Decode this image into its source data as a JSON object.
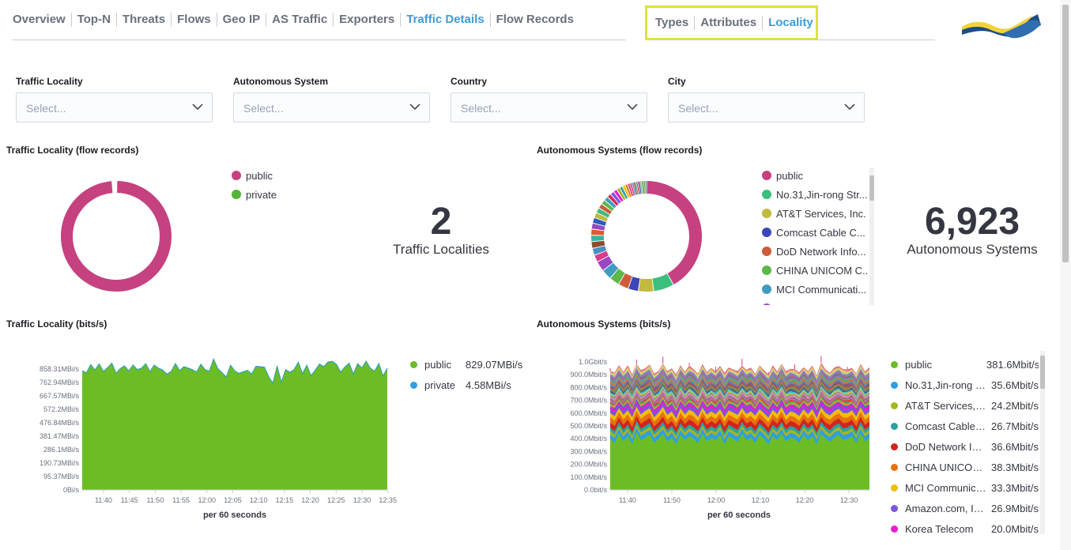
{
  "nav": {
    "tabs": [
      "Overview",
      "Top-N",
      "Threats",
      "Flows",
      "Geo IP",
      "AS Traffic",
      "Exporters",
      "Traffic Details",
      "Flow Records"
    ],
    "active": "Traffic Details",
    "subtabs": [
      "Types",
      "Attributes",
      "Locality"
    ],
    "sub_active": "Locality"
  },
  "filters": [
    {
      "label": "Traffic Locality",
      "placeholder": "Select..."
    },
    {
      "label": "Autonomous System",
      "placeholder": "Select..."
    },
    {
      "label": "Country",
      "placeholder": "Select..."
    },
    {
      "label": "City",
      "placeholder": "Select..."
    }
  ],
  "panels": {
    "locality_flows_title": "Traffic Locality (flow records)",
    "as_flows_title": "Autonomous Systems (flow records)",
    "locality_bits_title": "Traffic Locality (bits/s)",
    "as_bits_title": "Autonomous Systems (bits/s)"
  },
  "locality_legend": [
    {
      "name": "public",
      "color": "#c6417f"
    },
    {
      "name": "private",
      "color": "#54b339"
    }
  ],
  "as_legend": [
    {
      "name": "public",
      "color": "#c6417f"
    },
    {
      "name": "No.31,Jin-rong Str...",
      "color": "#3cbf7d"
    },
    {
      "name": "AT&T Services, Inc.",
      "color": "#c2b93e"
    },
    {
      "name": "Comcast Cable C...",
      "color": "#3b47b9"
    },
    {
      "name": "DoD Network Info...",
      "color": "#cc5c3a"
    },
    {
      "name": "CHINA UNICOM C...",
      "color": "#5cb84a"
    },
    {
      "name": "MCI Communicati...",
      "color": "#3f9bbf"
    },
    {
      "name": "Amazon.com, Inc.",
      "color": "#9b46c4"
    }
  ],
  "metrics": {
    "localities_value": "2",
    "localities_label": "Traffic Localities",
    "as_value": "6,923",
    "as_label": "Autonomous Systems"
  },
  "locality_bits_legend": [
    {
      "name": "public",
      "value": "829.07MBi/s",
      "color": "#6cbd25"
    },
    {
      "name": "private",
      "value": "4.58MBi/s",
      "color": "#2f9fe0"
    }
  ],
  "as_bits_legend": [
    {
      "name": "public",
      "value": "381.6Mbit/s",
      "color": "#6cbd25"
    },
    {
      "name": "No.31,Jin-rong S...",
      "value": "35.6Mbit/s",
      "color": "#2f9fe0"
    },
    {
      "name": "AT&T Services, I...",
      "value": "24.2Mbit/s",
      "color": "#a6b51e"
    },
    {
      "name": "Comcast Cable ...",
      "value": "26.7Mbit/s",
      "color": "#2aa2a1"
    },
    {
      "name": "DoD Network Inf...",
      "value": "36.6Mbit/s",
      "color": "#d2231f"
    },
    {
      "name": "CHINA UNICOM ...",
      "value": "38.3Mbit/s",
      "color": "#e8700f"
    },
    {
      "name": "MCI Communica...",
      "value": "33.3Mbit/s",
      "color": "#f2bc0c"
    },
    {
      "name": "Amazon.com, Inc.",
      "value": "26.9Mbit/s",
      "color": "#7b55e0"
    },
    {
      "name": "Korea Telecom",
      "value": "20.0Mbit/s",
      "color": "#ea1ccb"
    }
  ],
  "chart_data": [
    {
      "type": "pie",
      "title": "Traffic Locality (flow records)",
      "categories": [
        "public",
        "private"
      ],
      "values": [
        99.3,
        0.7
      ]
    },
    {
      "type": "pie",
      "title": "Autonomous Systems (flow records)",
      "categories": [
        "public",
        "No.31,Jin-rong Str...",
        "AT&T Services, Inc.",
        "Comcast Cable C...",
        "DoD Network Info...",
        "CHINA UNICOM C...",
        "MCI Communicati...",
        "Amazon.com, Inc."
      ],
      "values": [
        28,
        4,
        3,
        2,
        2,
        2,
        2,
        2
      ]
    },
    {
      "type": "area",
      "title": "Traffic Locality (bits/s)",
      "xlabel": "per 60 seconds",
      "ylabel": "",
      "x_ticks": [
        "11:40",
        "11:45",
        "11:50",
        "11:55",
        "12:00",
        "12:05",
        "12:10",
        "12:15",
        "12:20",
        "12:25",
        "12:30",
        "12:35"
      ],
      "y_ticks": [
        "0Bi/s",
        "95.37MBi/s",
        "190.73MBi/s",
        "286.1MBi/s",
        "381.47MBi/s",
        "476.84MBi/s",
        "572.2MBi/s",
        "667.57MBi/s",
        "762.94MBi/s",
        "858.31MBi/s"
      ],
      "ylim": [
        0,
        900
      ],
      "series": [
        {
          "name": "public",
          "values": [
            795,
            780,
            835,
            800,
            840,
            790,
            815,
            845,
            778,
            810,
            826,
            793,
            833,
            802,
            812,
            842,
            788,
            833,
            812,
            798,
            772,
            790,
            842,
            796,
            822,
            812,
            802,
            786,
            838,
            802,
            791,
            872,
            810,
            782,
            752,
            832,
            794,
            776,
            788,
            798,
            772,
            825,
            822,
            818,
            755,
            712,
            825,
            718,
            802,
            784,
            802,
            852,
            774,
            832,
            762,
            798,
            840,
            822,
            852,
            858,
            838,
            785,
            820,
            845,
            772,
            842,
            813,
            858,
            812,
            792,
            842,
            760,
            812
          ],
          "color": "#6cbd25"
        },
        {
          "name": "private",
          "values": [
            4,
            4,
            5,
            4,
            5,
            4,
            4,
            5,
            4,
            4,
            5,
            4,
            4,
            5,
            4,
            4,
            5,
            4,
            4,
            5,
            4,
            4,
            5,
            4,
            4,
            5,
            4,
            4,
            5,
            4,
            4,
            5,
            4,
            4,
            5,
            4,
            4,
            5,
            4,
            4,
            5,
            4,
            4,
            5,
            4,
            4,
            5,
            4,
            4,
            5,
            4,
            4,
            5,
            4,
            4,
            5,
            4,
            4,
            5,
            4,
            4,
            5,
            4,
            4,
            5,
            4,
            4,
            5,
            4,
            4,
            5,
            4,
            4
          ],
          "color": "#2f9fe0"
        }
      ]
    },
    {
      "type": "area",
      "title": "Autonomous Systems (bits/s)",
      "xlabel": "per 60 seconds",
      "ylabel": "",
      "x_ticks": [
        "11:40",
        "11:50",
        "12:00",
        "12:10",
        "12:20",
        "12:30"
      ],
      "y_ticks": [
        "0.0bit/s",
        "100.0Mbit/s",
        "200.0Mbit/s",
        "300.0Mbit/s",
        "400.0Mbit/s",
        "500.0Mbit/s",
        "600.0Mbit/s",
        "700.0Mbit/s",
        "800.0Mbit/s",
        "900.0Mbit/s",
        "1.0Gbit/s"
      ],
      "ylim": [
        0,
        1000
      ],
      "series": [
        {
          "name": "public",
          "values": [
            380,
            350,
            420,
            360,
            400,
            340,
            430,
            370,
            390,
            410,
            350,
            380,
            420,
            360,
            390,
            340,
            410,
            370,
            400,
            380,
            350,
            420,
            360,
            390,
            370,
            410,
            340,
            400,
            380,
            360,
            420,
            370,
            390,
            350,
            410,
            380,
            340,
            400,
            370,
            420,
            360,
            390,
            380,
            350,
            410,
            370,
            400,
            340,
            420,
            380,
            360,
            390,
            410,
            370,
            380,
            400,
            350,
            420,
            360,
            390
          ],
          "color": "#6cbd25"
        },
        {
          "name": "No.31,Jin-rong S...",
          "values": [
            35,
            36,
            34,
            37,
            35,
            36,
            35,
            34,
            36,
            37,
            35,
            36,
            34,
            35,
            37,
            36,
            35,
            34,
            36,
            35,
            37,
            35,
            36,
            34,
            35,
            36,
            37,
            35,
            34,
            36,
            35,
            36,
            35,
            37,
            34,
            36,
            35,
            36,
            35,
            34,
            37,
            35,
            36,
            35,
            34,
            36,
            37,
            35,
            36,
            35,
            34,
            36,
            35,
            37,
            35,
            36,
            34,
            35,
            36,
            35
          ],
          "color": "#2f9fe0"
        },
        {
          "name": "AT&T Services, I...",
          "values": [
            24,
            25,
            23,
            24,
            26,
            24,
            23,
            25,
            24,
            24,
            25,
            23,
            24,
            26,
            24,
            23,
            25,
            24,
            24,
            25,
            23,
            24,
            26,
            24,
            23,
            25,
            24,
            24,
            25,
            23,
            24,
            26,
            24,
            23,
            25,
            24,
            24,
            25,
            23,
            24,
            26,
            24,
            23,
            25,
            24,
            24,
            25,
            23,
            24,
            26,
            24,
            23,
            25,
            24,
            24,
            25,
            23,
            24,
            26,
            24
          ],
          "color": "#a6b51e"
        },
        {
          "name": "Comcast Cable ...",
          "values": [
            27,
            26,
            28,
            27,
            26,
            27,
            28,
            26,
            27,
            27,
            26,
            28,
            27,
            26,
            27,
            28,
            26,
            27,
            27,
            26,
            28,
            27,
            26,
            27,
            28,
            26,
            27,
            27,
            26,
            28,
            27,
            26,
            27,
            28,
            26,
            27,
            27,
            26,
            28,
            27,
            26,
            27,
            28,
            26,
            27,
            27,
            26,
            28,
            27,
            26,
            27,
            28,
            26,
            27,
            27,
            26,
            28,
            27,
            26,
            27
          ],
          "color": "#2aa2a1"
        },
        {
          "name": "DoD Network Inf...",
          "values": [
            36,
            38,
            35,
            37,
            36,
            39,
            35,
            36,
            38,
            37,
            35,
            36,
            39,
            37,
            36,
            35,
            38,
            36,
            37,
            39,
            35,
            36,
            38,
            37,
            36,
            35,
            39,
            36,
            37,
            38,
            35,
            36,
            37,
            39,
            36,
            35,
            38,
            37,
            36,
            39,
            35,
            37,
            36,
            38,
            35,
            36,
            39,
            37,
            36,
            35,
            38,
            37,
            36,
            39,
            35,
            36,
            38,
            37,
            36,
            35
          ],
          "color": "#d2231f"
        },
        {
          "name": "CHINA UNICOM ...",
          "values": [
            38,
            40,
            37,
            39,
            38,
            41,
            37,
            38,
            40,
            39,
            37,
            38,
            41,
            39,
            38,
            37,
            40,
            38,
            39,
            41,
            37,
            38,
            40,
            39,
            38,
            37,
            41,
            38,
            39,
            40,
            37,
            38,
            39,
            41,
            38,
            37,
            40,
            39,
            38,
            41,
            37,
            39,
            38,
            40,
            37,
            38,
            41,
            39,
            38,
            37,
            40,
            39,
            38,
            41,
            37,
            38,
            40,
            39,
            38,
            37
          ],
          "color": "#e8700f"
        },
        {
          "name": "MCI Communica...",
          "values": [
            33,
            34,
            32,
            35,
            33,
            34,
            32,
            33,
            35,
            34,
            32,
            33,
            34,
            35,
            33,
            32,
            34,
            33,
            35,
            34,
            32,
            33,
            34,
            35,
            33,
            32,
            34,
            33,
            35,
            34,
            32,
            33,
            34,
            35,
            33,
            32,
            34,
            33,
            35,
            34,
            32,
            33,
            34,
            35,
            33,
            32,
            34,
            33,
            35,
            34,
            32,
            33,
            34,
            35,
            33,
            32,
            34,
            33,
            35,
            34
          ],
          "color": "#f2bc0c"
        },
        {
          "name": "Amazon.com, Inc.",
          "values": [
            27,
            28,
            26,
            27,
            29,
            27,
            26,
            28,
            27,
            27,
            28,
            26,
            27,
            29,
            27,
            26,
            28,
            27,
            27,
            28,
            26,
            27,
            29,
            27,
            26,
            28,
            27,
            27,
            28,
            26,
            27,
            29,
            27,
            26,
            28,
            27,
            27,
            28,
            26,
            27,
            29,
            27,
            26,
            28,
            27,
            27,
            28,
            26,
            27,
            29,
            27,
            26,
            28,
            27,
            27,
            28,
            26,
            27,
            29,
            27
          ],
          "color": "#7b55e0"
        },
        {
          "name": "Korea Telecom",
          "values": [
            20,
            21,
            19,
            20,
            22,
            20,
            19,
            21,
            20,
            20,
            21,
            19,
            20,
            22,
            20,
            19,
            21,
            20,
            20,
            21,
            19,
            20,
            22,
            20,
            19,
            21,
            20,
            20,
            21,
            19,
            20,
            22,
            20,
            19,
            21,
            20,
            20,
            21,
            19,
            20,
            22,
            20,
            19,
            21,
            20,
            20,
            21,
            19,
            20,
            22,
            20,
            19,
            21,
            20,
            20,
            21,
            19,
            20,
            22,
            20
          ],
          "color": "#ea1ccb"
        }
      ]
    }
  ]
}
